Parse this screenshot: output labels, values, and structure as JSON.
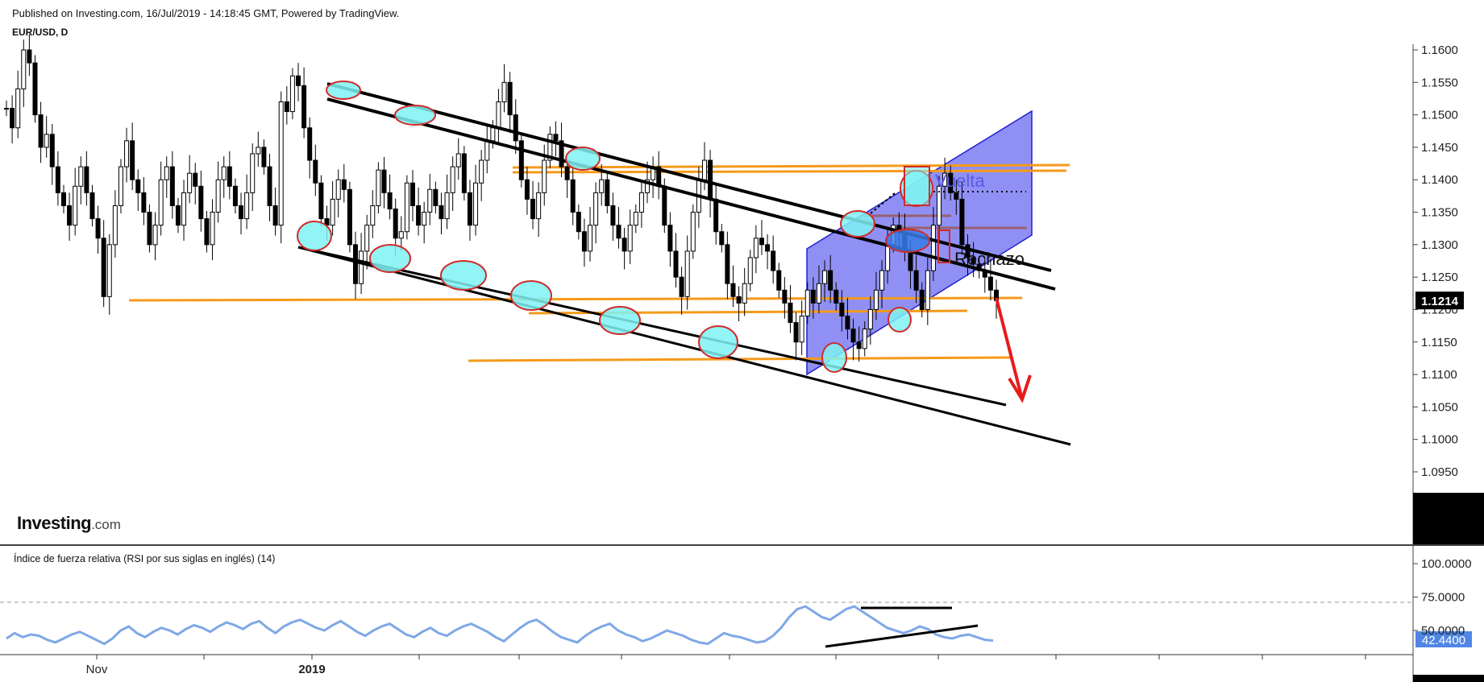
{
  "header": {
    "published": "Published on Investing.com, 16/Jul/2019 - 14:18:45 GMT, Powered by TradingView.",
    "symbol": "EUR/USD, D"
  },
  "logo": {
    "main": "Investing",
    "suffix": ".com"
  },
  "rsi_title": "Índice de fuerza relativa (RSI por sus siglas en inglés) (14)",
  "colors": {
    "candle": "#000000",
    "rsi_line": "#7fa8e6",
    "channel_fill": "#6b6bf0",
    "support_orange": "#f59a1a",
    "highlight_circle": "#7ff2f2",
    "circle_border": "#d02a2a",
    "arrow": "#e81b1b",
    "last_price_bg": "#000000",
    "rsi_badge": "#4f86e6"
  },
  "annotations": {
    "vuelta": "Vuelta",
    "rechazo": "Rechazo"
  },
  "chart_data": [
    {
      "type": "candlestick",
      "title": "EUR/USD, D",
      "yticks": [
        "1.1600",
        "1.1550",
        "1.1500",
        "1.1450",
        "1.1400",
        "1.1350",
        "1.1300",
        "1.1250",
        "1.1200",
        "1.1150",
        "1.1100",
        "1.1050",
        "1.1000",
        "1.0950"
      ],
      "ylim": [
        1.0925,
        1.161
      ],
      "xticks": [
        {
          "label": "Nov",
          "bold": false
        },
        {
          "label": "",
          "bold": false
        },
        {
          "label": "2019",
          "bold": true
        },
        {
          "label": "",
          "bold": false
        },
        {
          "label": "",
          "bold": false
        },
        {
          "label": "",
          "bold": false
        },
        {
          "label": "",
          "bold": false
        },
        {
          "label": "",
          "bold": false
        },
        {
          "label": "",
          "bold": false
        },
        {
          "label": "",
          "bold": false
        },
        {
          "label": "",
          "bold": false
        },
        {
          "label": "",
          "bold": false
        },
        {
          "label": "",
          "bold": false
        },
        {
          "label": "",
          "bold": false
        }
      ],
      "last_price": "1.1214",
      "close_series": [
        1.152,
        1.1505,
        1.156,
        1.1545,
        1.148,
        1.143,
        1.1395,
        1.134,
        1.133,
        1.137,
        1.14,
        1.1385,
        1.13,
        1.124,
        1.129,
        1.133,
        1.136,
        1.1415,
        1.138,
        1.1355,
        1.131,
        1.132,
        1.1395,
        1.136,
        1.133,
        1.135,
        1.1385,
        1.136,
        1.134,
        1.138,
        1.142,
        1.144,
        1.138,
        1.133,
        1.1395,
        1.143,
        1.146,
        1.148,
        1.152,
        1.155,
        1.15,
        1.146,
        1.14,
        1.137,
        1.134,
        1.138,
        1.143,
        1.147,
        1.146,
        1.142,
        1.14,
        1.135,
        1.132,
        1.129,
        1.133,
        1.138,
        1.14,
        1.136,
        1.133,
        1.131,
        1.129,
        1.133,
        1.135,
        1.138,
        1.14,
        1.142,
        1.139,
        1.133,
        1.129,
        1.125,
        1.122,
        1.129,
        1.135,
        1.14,
        1.143,
        1.137,
        1.132,
        1.13,
        1.124,
        1.122,
        1.121,
        1.124,
        1.128,
        1.131,
        1.13,
        1.129,
        1.126,
        1.123,
        1.121,
        1.118,
        1.115,
        1.119,
        1.123,
        1.121,
        1.124,
        1.126,
        1.123,
        1.121,
        1.119,
        1.117,
        1.115,
        1.114,
        1.117,
        1.12,
        1.123,
        1.126,
        1.13,
        1.133,
        1.132,
        1.129,
        1.126,
        1.123,
        1.12,
        1.126,
        1.133,
        1.139,
        1.141,
        1.138,
        1.137,
        1.13,
        1.128,
        1.127,
        1.126,
        1.125,
        1.123,
        1.1214
      ],
      "series": [
        {
          "name": "EUR/USD"
        }
      ]
    },
    {
      "type": "line",
      "title": "Índice de fuerza relativa (RSI por sus siglas en inglés) (14)",
      "yticks": [
        "100.0000",
        "75.0000",
        "50.0000"
      ],
      "ylim": [
        30,
        100
      ],
      "last_value": "42.4400",
      "values": [
        44,
        48,
        45,
        47,
        46,
        43,
        41,
        44,
        47,
        49,
        46,
        43,
        40,
        44,
        50,
        53,
        48,
        45,
        49,
        52,
        50,
        47,
        51,
        54,
        52,
        49,
        53,
        56,
        54,
        51,
        55,
        57,
        52,
        48,
        53,
        56,
        58,
        55,
        52,
        50,
        54,
        57,
        53,
        49,
        46,
        50,
        53,
        55,
        51,
        47,
        45,
        49,
        52,
        48,
        46,
        50,
        53,
        55,
        52,
        49,
        45,
        42,
        47,
        52,
        56,
        58,
        54,
        49,
        45,
        43,
        41,
        46,
        50,
        53,
        55,
        50,
        47,
        45,
        42,
        44,
        47,
        50,
        48,
        46,
        43,
        41,
        40,
        44,
        48,
        46,
        45,
        43,
        41,
        42,
        46,
        52,
        60,
        66,
        68,
        64,
        60,
        58,
        62,
        66,
        68,
        64,
        60,
        56,
        52,
        50,
        48,
        50,
        53,
        51,
        47,
        45,
        44,
        46,
        47,
        45,
        43,
        42.44
      ]
    }
  ]
}
